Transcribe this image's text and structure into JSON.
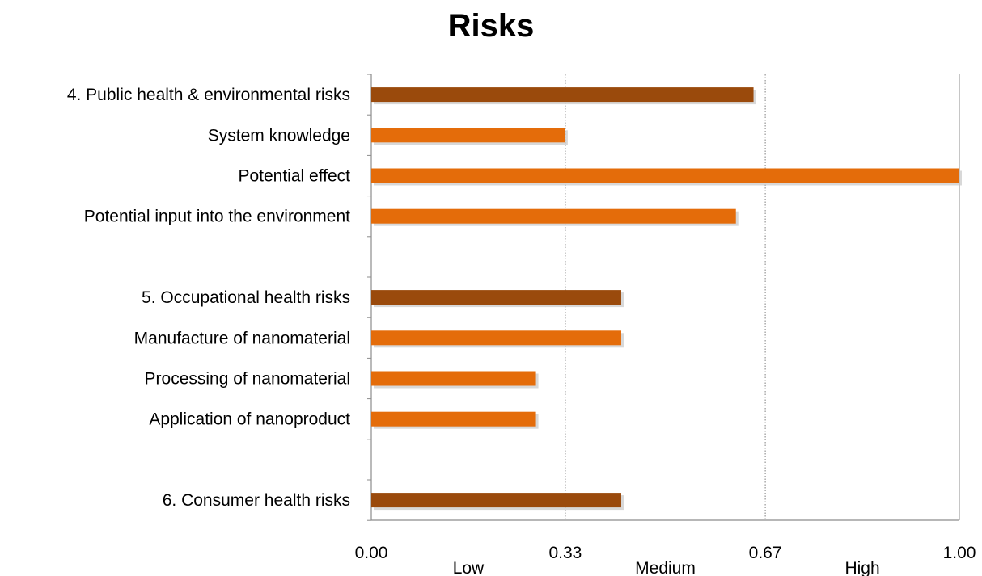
{
  "chart_data": {
    "type": "bar",
    "orientation": "horizontal",
    "title": "Risks",
    "xlim": [
      0,
      1
    ],
    "x_ticks": [
      {
        "value": 0,
        "label": "0.00"
      },
      {
        "value": 0.33,
        "label": "0.33"
      },
      {
        "value": 0.67,
        "label": "0.67"
      },
      {
        "value": 1,
        "label": "1.00"
      }
    ],
    "zones": [
      {
        "label": "Low",
        "range": [
          0,
          0.33
        ]
      },
      {
        "label": "Medium",
        "range": [
          0.33,
          0.67
        ]
      },
      {
        "label": "High",
        "range": [
          0.67,
          1
        ]
      }
    ],
    "gridlines": [
      0.33,
      0.67
    ],
    "grid_style": "dotted vertical",
    "colors": {
      "group": "#9a4a0c",
      "item": "#e46c0a"
    },
    "categories": [
      {
        "label": "4. Public health & environmental risks",
        "value": 0.65,
        "kind": "group"
      },
      {
        "label": "System knowledge",
        "value": 0.33,
        "kind": "item"
      },
      {
        "label": "Potential effect",
        "value": 1.0,
        "kind": "item"
      },
      {
        "label": "Potential input into the environment",
        "value": 0.62,
        "kind": "item"
      },
      {
        "label": "",
        "value": null,
        "kind": "spacer"
      },
      {
        "label": "5. Occupational health risks",
        "value": 0.425,
        "kind": "group"
      },
      {
        "label": "Manufacture of nanomaterial",
        "value": 0.425,
        "kind": "item"
      },
      {
        "label": "Processing of nanomaterial",
        "value": 0.28,
        "kind": "item"
      },
      {
        "label": "Application of nanoproduct",
        "value": 0.28,
        "kind": "item"
      },
      {
        "label": "",
        "value": null,
        "kind": "spacer"
      },
      {
        "label": "6. Consumer health risks",
        "value": 0.425,
        "kind": "group"
      }
    ]
  }
}
